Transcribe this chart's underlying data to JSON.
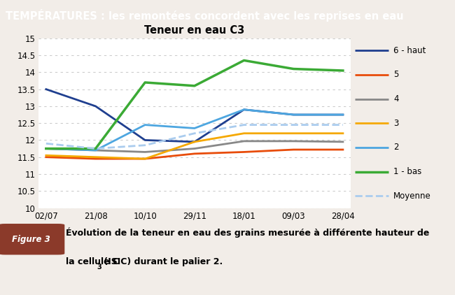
{
  "title": "Teneur en eau C3",
  "header_title": "TEMPÉRATURES : les remontées concordent avec les reprises en eau",
  "header_bg": "#8B3A2A",
  "header_text_color": "#FFFFFF",
  "x_labels": [
    "02/07",
    "21/08",
    "10/10",
    "29/11",
    "18/01",
    "09/03",
    "28/04"
  ],
  "ylim": [
    10,
    15
  ],
  "yticks": [
    10,
    10.5,
    11,
    11.5,
    12,
    12.5,
    13,
    13.5,
    14,
    14.5,
    15
  ],
  "series": {
    "6 - haut": {
      "color": "#1F3F8F",
      "values": [
        13.5,
        13.0,
        12.0,
        11.95,
        12.9,
        12.75,
        12.75
      ],
      "linestyle": "solid",
      "linewidth": 2.0
    },
    "5": {
      "color": "#E84C0A",
      "values": [
        11.5,
        11.45,
        11.45,
        11.6,
        11.65,
        11.72,
        11.72
      ],
      "linestyle": "solid",
      "linewidth": 2.0
    },
    "4": {
      "color": "#888888",
      "values": [
        11.75,
        11.7,
        11.65,
        11.75,
        11.97,
        11.97,
        11.95
      ],
      "linestyle": "solid",
      "linewidth": 2.0
    },
    "3": {
      "color": "#F5A800",
      "values": [
        11.55,
        11.5,
        11.45,
        11.95,
        12.2,
        12.2,
        12.2
      ],
      "linestyle": "solid",
      "linewidth": 2.0
    },
    "2": {
      "color": "#4DA6E0",
      "values": [
        11.75,
        11.7,
        12.45,
        12.35,
        12.9,
        12.75,
        12.75
      ],
      "linestyle": "solid",
      "linewidth": 2.0
    },
    "1 - bas": {
      "color": "#3BAA35",
      "values": [
        11.75,
        11.75,
        13.7,
        13.6,
        14.35,
        14.1,
        14.05
      ],
      "linestyle": "solid",
      "linewidth": 2.5
    },
    "Moyenne": {
      "color": "#AACCEE",
      "values": [
        11.9,
        11.75,
        11.85,
        12.2,
        12.45,
        12.45,
        12.45
      ],
      "linestyle": "dashed",
      "linewidth": 2.0
    }
  },
  "series_order": [
    "6 - haut",
    "5",
    "4",
    "3",
    "2",
    "1 - bas",
    "Moyenne"
  ],
  "figure_label": "Figure 3",
  "figure_label_bg": "#8B3A2A",
  "caption_line1": "Évolution de la teneur en eau des grains mesurée à différente hauteur de",
  "caption_line2": "la cellule C",
  "caption_line2b": "3",
  "caption_line2c": " (ISIC) durant le palier 2.",
  "bg_color": "#F2EDE8",
  "plot_bg": "#FFFFFF",
  "grid_color": "#CCCCCC"
}
